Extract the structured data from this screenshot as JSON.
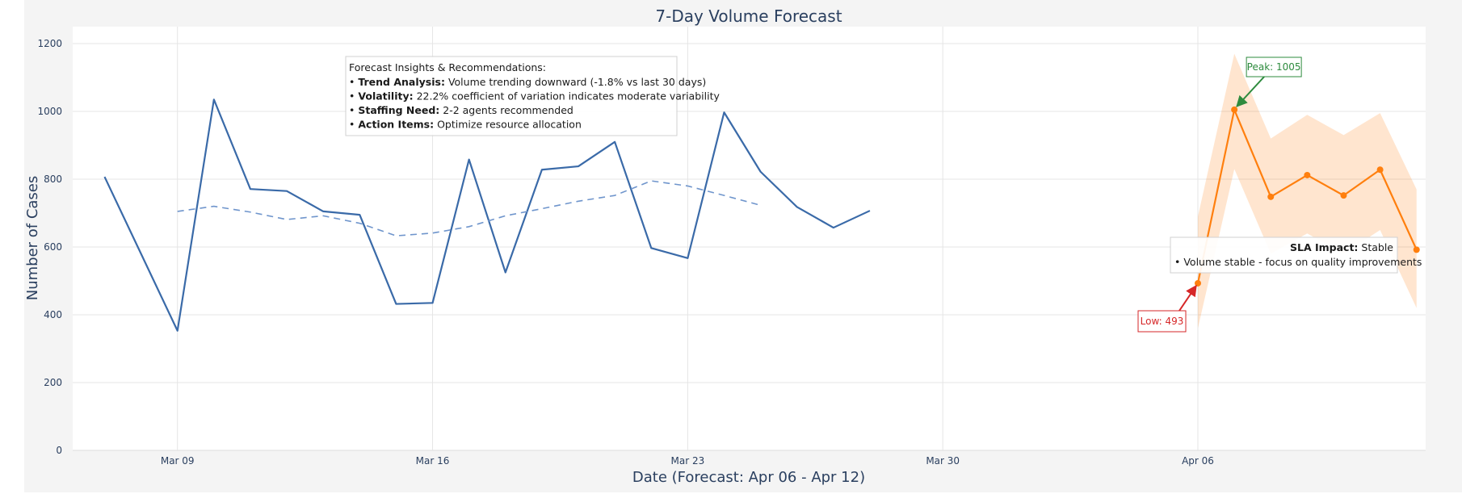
{
  "chart_data": {
    "type": "line",
    "title": "7-Day Volume Forecast",
    "xlabel": "Date (Forecast: Apr 06 - Apr 12)",
    "ylabel": "Number of Cases",
    "ylim": [
      0,
      1250
    ],
    "y_ticks": [
      0,
      200,
      400,
      600,
      800,
      1000,
      1200
    ],
    "x_ticks": [
      {
        "date": "2024-03-09",
        "label": "Mar 09"
      },
      {
        "date": "2024-03-16",
        "label": "Mar 16"
      },
      {
        "date": "2024-03-23",
        "label": "Mar 23"
      },
      {
        "date": "2024-03-30",
        "label": "Mar 30"
      },
      {
        "date": "2024-04-06",
        "label": "Apr 06"
      }
    ],
    "xlim": [
      "2024-03-06T03:00",
      "2024-04-12T06:00"
    ],
    "grid": true,
    "series": [
      {
        "kind": "historical",
        "color": "#3a6aa8",
        "x": [
          "2024-03-07",
          "2024-03-08",
          "2024-03-09",
          "2024-03-10",
          "2024-03-11",
          "2024-03-12",
          "2024-03-13",
          "2024-03-14",
          "2024-03-15",
          "2024-03-16",
          "2024-03-17",
          "2024-03-18",
          "2024-03-19",
          "2024-03-20",
          "2024-03-21",
          "2024-03-22",
          "2024-03-23",
          "2024-03-24",
          "2024-03-25",
          "2024-03-26",
          "2024-03-27",
          "2024-03-28"
        ],
        "values": [
          807,
          580,
          353,
          1035,
          771,
          765,
          705,
          695,
          432,
          435,
          858,
          525,
          828,
          838,
          910,
          597,
          567,
          997,
          822,
          718,
          657,
          707
        ]
      },
      {
        "kind": "moving-average",
        "color": "#6f95cc",
        "dash": true,
        "x": [
          "2024-03-09",
          "2024-03-10",
          "2024-03-11",
          "2024-03-12",
          "2024-03-13",
          "2024-03-14",
          "2024-03-15",
          "2024-03-16",
          "2024-03-17",
          "2024-03-18",
          "2024-03-19",
          "2024-03-20",
          "2024-03-21",
          "2024-03-22",
          "2024-03-23",
          "2024-03-24",
          "2024-03-25"
        ],
        "values": [
          705,
          720,
          703,
          681,
          692,
          670,
          633,
          641,
          660,
          692,
          713,
          735,
          752,
          795,
          780,
          752,
          723
        ]
      },
      {
        "kind": "forecast",
        "color": "#ff7f0e",
        "x": [
          "2024-04-06",
          "2024-04-07",
          "2024-04-08",
          "2024-04-09",
          "2024-04-10",
          "2024-04-11",
          "2024-04-12"
        ],
        "values": [
          493,
          1005,
          748,
          812,
          752,
          828,
          592
        ],
        "upper": [
          690,
          1170,
          920,
          990,
          930,
          995,
          770
        ],
        "lower": [
          360,
          830,
          580,
          640,
          580,
          650,
          420
        ]
      }
    ],
    "annotations": {
      "insights": {
        "heading": "Forecast Insights & Recommendations:",
        "bullet": "• ",
        "items": [
          {
            "label": "Trend Analysis:",
            "text": " Volume trending downward (-1.8% vs last 30 days)"
          },
          {
            "label": "Volatility:",
            "text": " 22.2% coefficient of variation indicates moderate variability"
          },
          {
            "label": "Staffing Need:",
            "text": " 2-2 agents recommended"
          },
          {
            "label": "Action Items:",
            "text": " Optimize resource allocation"
          }
        ]
      },
      "sla": {
        "label": "SLA Impact:",
        "value": " Stable",
        "note": "• Volume stable - focus on quality improvements"
      },
      "peak": {
        "text": "Peak: 1005",
        "date": "2024-04-07",
        "value": 1005,
        "color": "#2e8b3e"
      },
      "low": {
        "text": "Low: 493",
        "date": "2024-04-06",
        "value": 493,
        "color": "#d62728"
      }
    }
  }
}
